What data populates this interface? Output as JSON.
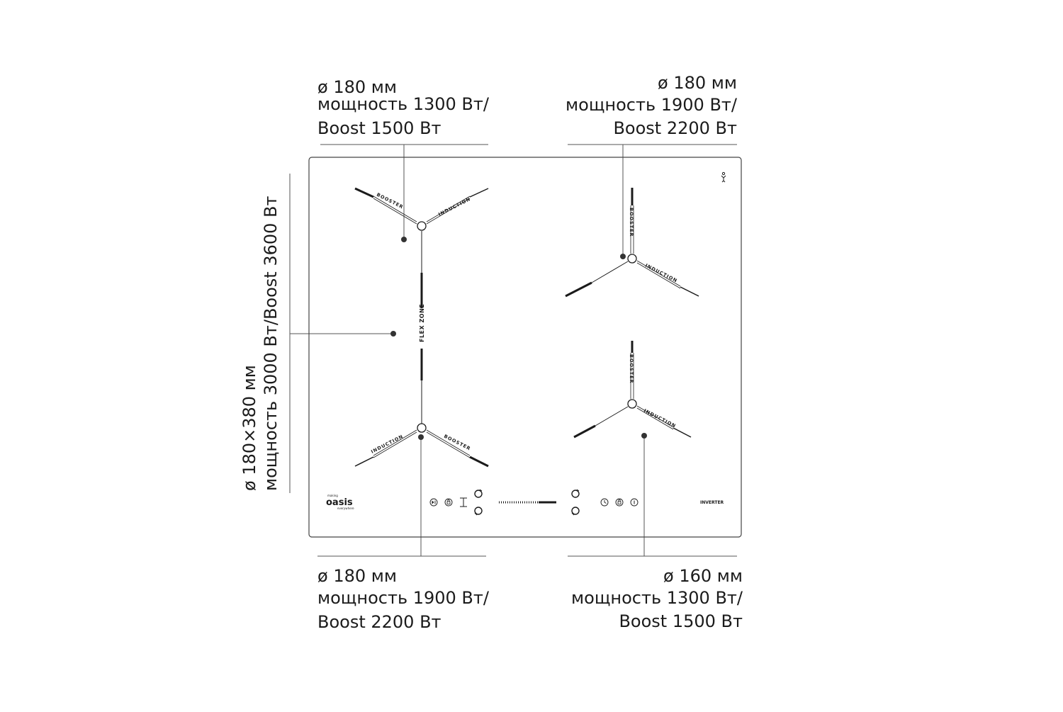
{
  "zones": {
    "top_left": {
      "diameter": "ø 180 мм",
      "power": "мощность 1300 Вт/",
      "boost": "Boost 1500 Вт"
    },
    "top_right": {
      "diameter": "ø 180 мм",
      "power": "мощность 1900 Вт/",
      "boost": "Boost 2200 Вт"
    },
    "flex": {
      "spec": "ø 180×380 мм",
      "power": "мощность 3000 Вт/Boost 3600 Вт"
    },
    "bottom_left": {
      "diameter": "ø 180 мм",
      "power": "мощность 1900 Вт/",
      "boost": "Boost 2200 Вт"
    },
    "bottom_right": {
      "diameter": "ø 160 мм",
      "power": "мощность 1300 Вт/",
      "boost": "Boost 1500 Вт"
    }
  },
  "panel_labels": {
    "booster": "BOOSTER",
    "induction": "INDUCTION",
    "flex_zone": "FLEX ZONE",
    "brand": "oasis",
    "brand_top": "making",
    "brand_bottom": "everywhere",
    "inverter": "INVERTER"
  },
  "colors": {
    "stroke": "#1b1b1b",
    "dot": "#333333",
    "panel_border": "#444444"
  },
  "icons": [
    "play-pause-icon",
    "lock-icon",
    "timer-display-icon",
    "plus-icon",
    "minus-icon",
    "slider-icon",
    "clock-icon",
    "child-lock-icon",
    "power-icon",
    "child-symbol-icon"
  ]
}
